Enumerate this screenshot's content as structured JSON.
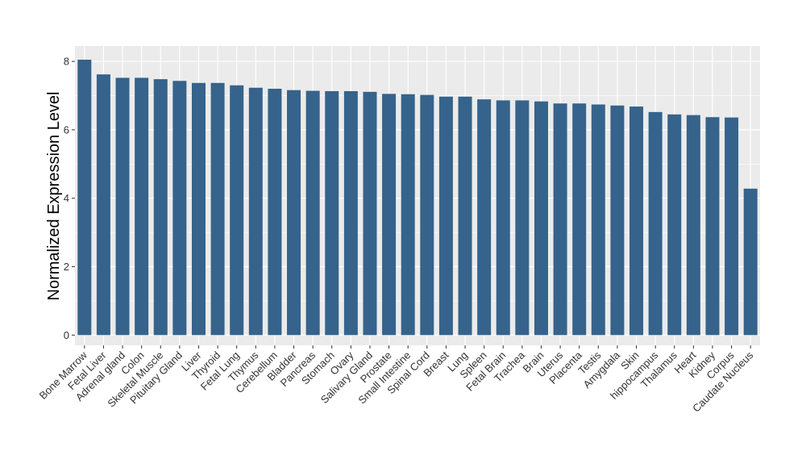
{
  "chart_data": {
    "type": "bar",
    "title": "",
    "xlabel": "",
    "ylabel": "Normalized Expression Level",
    "ylim": [
      -0.3,
      8.45
    ],
    "yticks": [
      0,
      2,
      4,
      6,
      8
    ],
    "ytick_labels": [
      "0",
      "2",
      "4",
      "6",
      "8"
    ],
    "grid": true,
    "bar_color": "#35638B",
    "panel_color": "#EBEBEB",
    "categories": [
      "Bone Marrow",
      "Fetal Liver",
      "Adrenal gland",
      "Colon",
      "Skeletal Muscle",
      "Pituitary Gland",
      "Liver",
      "Thyroid",
      "Fetal Lung",
      "Thymus",
      "Cerebellum",
      "Bladder",
      "Pancreas",
      "Stomach",
      "Ovary",
      "Salivary Gland",
      "Prostate",
      "Small Intestine",
      "Spinal Cord",
      "Breast",
      "Lung",
      "Spleen",
      "Fetal Brain",
      "Trachea",
      "Brain",
      "Uterus",
      "Placenta",
      "Testis",
      "Amygdala",
      "Skin",
      "hippocampus",
      "Thalamus",
      "Heart",
      "Kidney",
      "Corpus",
      "Caudate Nucleus"
    ],
    "values": [
      8.05,
      7.62,
      7.52,
      7.52,
      7.48,
      7.43,
      7.37,
      7.37,
      7.3,
      7.23,
      7.2,
      7.16,
      7.14,
      7.13,
      7.13,
      7.11,
      7.05,
      7.04,
      7.02,
      6.97,
      6.97,
      6.89,
      6.86,
      6.86,
      6.83,
      6.77,
      6.77,
      6.74,
      6.71,
      6.68,
      6.52,
      6.45,
      6.43,
      6.37,
      6.36,
      4.28
    ]
  }
}
